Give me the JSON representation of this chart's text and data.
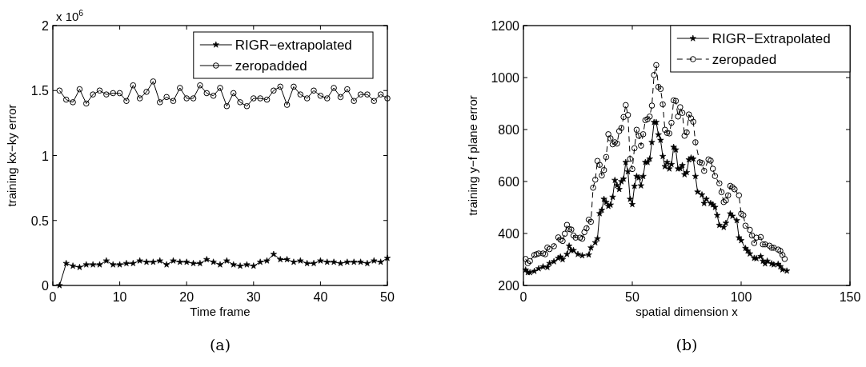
{
  "chart_data": [
    {
      "type": "line",
      "xlabel": "Time frame",
      "ylabel": "training kx−ky error",
      "annotations": [
        "x 10$^{6}$",
        "(a)"
      ],
      "xlim": [
        0,
        50
      ],
      "xticks": [
        0,
        10,
        20,
        30,
        40,
        50
      ],
      "ylim": [
        0,
        2
      ],
      "yticks": [
        0,
        0.5,
        1,
        1.5,
        2
      ],
      "grid": false,
      "legend": "top right",
      "x": [
        1,
        2,
        3,
        4,
        5,
        6,
        7,
        8,
        9,
        10,
        11,
        12,
        13,
        14,
        15,
        16,
        17,
        18,
        19,
        20,
        21,
        22,
        23,
        24,
        25,
        26,
        27,
        28,
        29,
        30,
        31,
        32,
        33,
        34,
        35,
        36,
        37,
        38,
        39,
        40,
        41,
        42,
        43,
        44,
        45,
        46,
        47,
        48,
        49,
        50
      ],
      "series": [
        {
          "name": "RIGR−extrapolated",
          "color": "#000000",
          "marker": "star",
          "line_style": "solid",
          "values": [
            0,
            0.17,
            0.15,
            0.14,
            0.16,
            0.16,
            0.16,
            0.19,
            0.16,
            0.16,
            0.17,
            0.17,
            0.19,
            0.18,
            0.18,
            0.19,
            0.16,
            0.19,
            0.18,
            0.18,
            0.17,
            0.17,
            0.2,
            0.18,
            0.16,
            0.19,
            0.16,
            0.15,
            0.16,
            0.15,
            0.18,
            0.19,
            0.24,
            0.2,
            0.2,
            0.18,
            0.19,
            0.17,
            0.17,
            0.19,
            0.18,
            0.18,
            0.17,
            0.18,
            0.18,
            0.18,
            0.17,
            0.19,
            0.18,
            0.21
          ]
        },
        {
          "name": "zeropadded",
          "color": "#000000",
          "marker": "circle",
          "line_style": "solid",
          "values": [
            1.5,
            1.43,
            1.41,
            1.51,
            1.4,
            1.47,
            1.5,
            1.47,
            1.48,
            1.48,
            1.42,
            1.54,
            1.44,
            1.49,
            1.57,
            1.41,
            1.45,
            1.42,
            1.52,
            1.44,
            1.44,
            1.54,
            1.48,
            1.46,
            1.52,
            1.38,
            1.48,
            1.41,
            1.38,
            1.44,
            1.44,
            1.43,
            1.5,
            1.53,
            1.39,
            1.53,
            1.47,
            1.44,
            1.5,
            1.46,
            1.44,
            1.52,
            1.45,
            1.51,
            1.42,
            1.47,
            1.47,
            1.42,
            1.47,
            1.44
          ]
        }
      ]
    },
    {
      "type": "line",
      "xlabel": "spatial dimension x",
      "ylabel": "training y−f plane error",
      "annotations": [
        "(b)"
      ],
      "xlim": [
        0,
        150
      ],
      "xticks": [
        0,
        50,
        100,
        150
      ],
      "ylim": [
        200,
        1200
      ],
      "yticks": [
        200,
        400,
        600,
        800,
        1000,
        1200
      ],
      "grid": false,
      "legend": "top right",
      "series": [
        {
          "name": "RIGR−Extrapolated",
          "color": "#000000",
          "marker": "star",
          "line_style": "solid",
          "x": [
            1,
            2,
            3,
            5,
            7,
            9,
            11,
            12,
            14,
            16,
            17,
            18,
            20,
            21,
            22,
            23,
            25,
            27,
            30,
            31,
            33,
            34,
            35,
            36,
            37,
            38,
            39,
            40,
            41,
            42,
            43,
            44,
            45,
            46,
            47,
            48,
            49,
            50,
            51,
            52,
            53,
            54,
            55,
            56,
            57,
            58,
            59,
            60,
            61,
            62,
            63,
            64,
            65,
            66,
            67,
            68,
            69,
            70,
            71,
            72,
            73,
            74,
            75,
            76,
            77,
            78,
            79,
            80,
            82,
            83,
            84,
            86,
            87,
            88,
            89,
            90,
            92,
            93,
            95,
            96,
            98,
            99,
            100,
            102,
            103,
            104,
            106,
            107,
            109,
            110,
            111,
            112,
            114,
            115,
            117,
            118,
            119,
            121
          ],
          "values": [
            260,
            250,
            250,
            255,
            265,
            272,
            270,
            285,
            292,
            305,
            310,
            300,
            320,
            352,
            335,
            335,
            320,
            315,
            318,
            345,
            365,
            380,
            477,
            490,
            532,
            520,
            505,
            510,
            540,
            605,
            585,
            570,
            600,
            610,
            674,
            638,
            532,
            512,
            582,
            620,
            615,
            584,
            620,
            674,
            674,
            687,
            751,
            828,
            828,
            780,
            759,
            697,
            658,
            674,
            649,
            666,
            732,
            722,
            649,
            650,
            662,
            627,
            635,
            684,
            691,
            687,
            620,
            560,
            549,
            516,
            532,
            516,
            511,
            501,
            470,
            432,
            424,
            440,
            476,
            467,
            450,
            384,
            373,
            343,
            333,
            322,
            305,
            304,
            312,
            294,
            284,
            294,
            284,
            280,
            282,
            273,
            261,
            256
          ]
        },
        {
          "name": "zeropaded",
          "color": "#000000",
          "marker": "circle",
          "line_style": "dashed",
          "x": [
            1,
            2,
            3,
            5,
            6,
            7,
            9,
            10,
            11,
            12,
            14,
            16,
            17,
            18,
            19,
            20,
            21,
            22,
            23,
            24,
            26,
            27,
            28,
            29,
            30,
            31,
            32,
            33,
            34,
            35,
            36,
            37,
            38,
            39,
            40,
            41,
            42,
            43,
            44,
            45,
            46,
            47,
            48,
            49,
            50,
            51,
            52,
            53,
            54,
            55,
            56,
            57,
            58,
            59,
            60,
            61,
            62,
            63,
            64,
            65,
            66,
            67,
            68,
            69,
            70,
            71,
            72,
            73,
            74,
            75,
            76,
            77,
            78,
            79,
            81,
            82,
            83,
            85,
            86,
            87,
            88,
            90,
            91,
            92,
            93,
            94,
            95,
            96,
            97,
            99,
            100,
            101,
            102,
            104,
            105,
            106,
            107,
            109,
            110,
            111,
            113,
            114,
            115,
            117,
            118,
            119,
            120
          ],
          "values": [
            302,
            286,
            294,
            317,
            320,
            323,
            323,
            320,
            346,
            340,
            351,
            385,
            376,
            371,
            399,
            433,
            417,
            415,
            392,
            384,
            384,
            380,
            405,
            420,
            453,
            445,
            576,
            607,
            679,
            664,
            623,
            644,
            694,
            782,
            766,
            743,
            751,
            746,
            794,
            806,
            848,
            894,
            856,
            687,
            648,
            728,
            799,
            776,
            738,
            782,
            836,
            840,
            850,
            892,
            1010,
            1048,
            964,
            956,
            897,
            799,
            787,
            785,
            826,
            912,
            910,
            850,
            886,
            864,
            776,
            789,
            858,
            843,
            830,
            751,
            674,
            671,
            641,
            685,
            680,
            649,
            621,
            593,
            559,
            521,
            527,
            547,
            583,
            578,
            570,
            547,
            476,
            470,
            430,
            414,
            392,
            363,
            384,
            386,
            358,
            358,
            353,
            345,
            345,
            338,
            333,
            317,
            302
          ]
        }
      ]
    }
  ]
}
